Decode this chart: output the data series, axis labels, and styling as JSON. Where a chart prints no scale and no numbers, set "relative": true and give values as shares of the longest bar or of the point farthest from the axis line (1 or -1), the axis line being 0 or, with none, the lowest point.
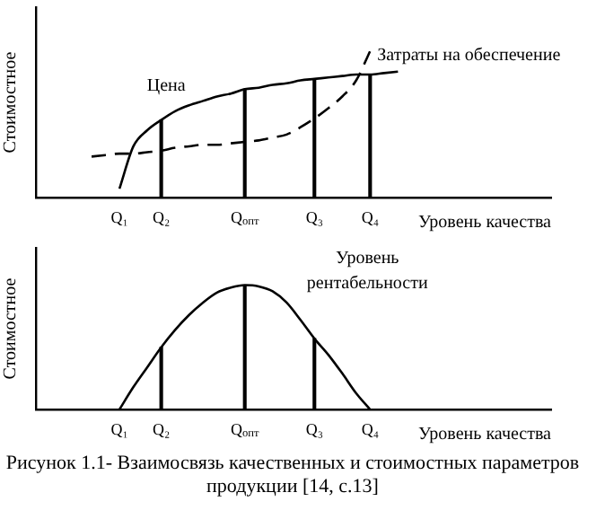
{
  "chart_data": [
    {
      "type": "line",
      "relative": true,
      "ylabel": "Стоимостное",
      "xlabel": "Уровень качества",
      "grid": false,
      "legend": false,
      "marker": "none",
      "categories": [
        null,
        null,
        null,
        null,
        null,
        null,
        "Q₁",
        null,
        null,
        "Q₂",
        null,
        null,
        null,
        null,
        null,
        "Q$_{опт}$",
        null,
        null,
        null,
        null,
        "Q₃",
        null,
        null,
        null,
        "Q₄",
        null,
        null,
        null,
        null,
        null,
        null,
        null,
        null,
        null,
        null,
        null,
        null,
        null
      ],
      "series": [
        {
          "name": "Цена",
          "color": "#000000",
          "line_style": "solid",
          "values": [
            null,
            null,
            null,
            null,
            null,
            null,
            0.06,
            0.35,
            0.46,
            0.53,
            0.59,
            0.63,
            0.66,
            0.69,
            0.71,
            0.74,
            0.75,
            0.77,
            0.78,
            0.8,
            0.81,
            0.82,
            0.83,
            0.84,
            0.84,
            0.85,
            0.86,
            null,
            null,
            null,
            null,
            null,
            null,
            null,
            null,
            null,
            null,
            null
          ]
        },
        {
          "name": "Затраты на обеспечение",
          "color": "#000000",
          "line_style": "dashed",
          "values": [
            null,
            null,
            null,
            null,
            0.28,
            0.29,
            0.3,
            0.3,
            0.31,
            0.32,
            0.34,
            0.35,
            0.36,
            0.36,
            0.37,
            0.38,
            0.39,
            0.41,
            0.43,
            0.48,
            0.54,
            0.61,
            0.69,
            0.8,
            1,
            null,
            null,
            null,
            null,
            null,
            null,
            null,
            null,
            null,
            null,
            null,
            null,
            null
          ]
        },
        {
          "type": "bar",
          "color": "#000000",
          "values": [
            null,
            null,
            null,
            null,
            null,
            null,
            null,
            null,
            null,
            0.53,
            null,
            null,
            null,
            null,
            null,
            0.74,
            null,
            null,
            null,
            null,
            0.81,
            null,
            null,
            null,
            0.84,
            null,
            null,
            null,
            null,
            null,
            null,
            null,
            null,
            null,
            null,
            null,
            null,
            null
          ]
        }
      ]
    },
    {
      "type": "line",
      "relative": true,
      "ylabel": "Стоимостное",
      "xlabel": "Уровень качества",
      "grid": false,
      "legend": false,
      "marker": "none",
      "annotations": [
        "Рисунок 1.1-  Взаимосвязь качественных и стоимостных параметров продукции [14, с.13]"
      ],
      "categories": [
        null,
        null,
        null,
        null,
        null,
        null,
        "Q₁",
        null,
        null,
        "Q₂",
        null,
        null,
        null,
        null,
        null,
        "Q$_{опт}$",
        null,
        null,
        null,
        null,
        "Q₃",
        null,
        null,
        null,
        "Q₄",
        null,
        null,
        null,
        null,
        null,
        null,
        null,
        null,
        null,
        null,
        null,
        null,
        null
      ],
      "series": [
        {
          "name": "Уровень рентабельности",
          "color": "#000000",
          "line_style": "solid",
          "values": [
            null,
            null,
            null,
            null,
            null,
            null,
            0,
            0.18,
            0.34,
            0.5,
            0.64,
            0.76,
            0.86,
            0.94,
            0.98,
            1,
            0.99,
            0.95,
            0.86,
            0.72,
            0.57,
            0.44,
            0.29,
            0.13,
            0,
            null,
            null,
            null,
            null,
            null,
            null,
            null,
            null,
            null,
            null,
            null,
            null,
            null
          ]
        },
        {
          "type": "bar",
          "color": "#000000",
          "values": [
            null,
            null,
            null,
            null,
            null,
            null,
            null,
            null,
            null,
            0.5,
            null,
            null,
            null,
            null,
            null,
            1,
            null,
            null,
            null,
            null,
            0.57,
            null,
            null,
            null,
            null,
            null,
            null,
            null,
            null,
            null,
            null,
            null,
            null,
            null,
            null,
            null,
            null,
            null
          ]
        }
      ]
    }
  ]
}
